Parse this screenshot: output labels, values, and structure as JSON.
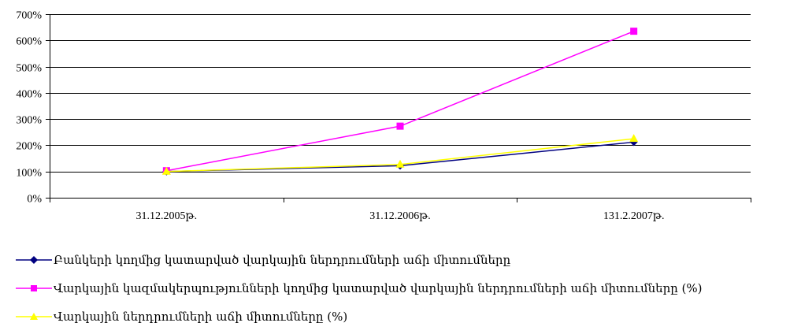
{
  "chart_data": {
    "type": "line",
    "categories": [
      "31.12.2005թ.",
      "31.12.2006թ.",
      "131.2.2007թ."
    ],
    "ylim": [
      0,
      700
    ],
    "y_ticks": [
      "0%",
      "100%",
      "200%",
      "300%",
      "400%",
      "500%",
      "600%",
      "700%"
    ],
    "grid": true,
    "legend_position": "bottom",
    "series": [
      {
        "name": "Բանկերի կողմից կատարված վարկային ներդրումների աճի միտումները",
        "values": [
          100,
          122,
          212
        ],
        "color": "#000080",
        "marker": "diamond"
      },
      {
        "name": "Վարկային կազմակերպությունների կողմից կատարված վարկային ներդրումների աճի միտումները (%)",
        "values": [
          103,
          273,
          635
        ],
        "color": "#ff00ff",
        "marker": "square"
      },
      {
        "name": "Վարկային ներդրումների աճի միտումները (%)",
        "values": [
          100,
          127,
          225
        ],
        "color": "#ffff00",
        "marker": "triangle"
      }
    ]
  }
}
